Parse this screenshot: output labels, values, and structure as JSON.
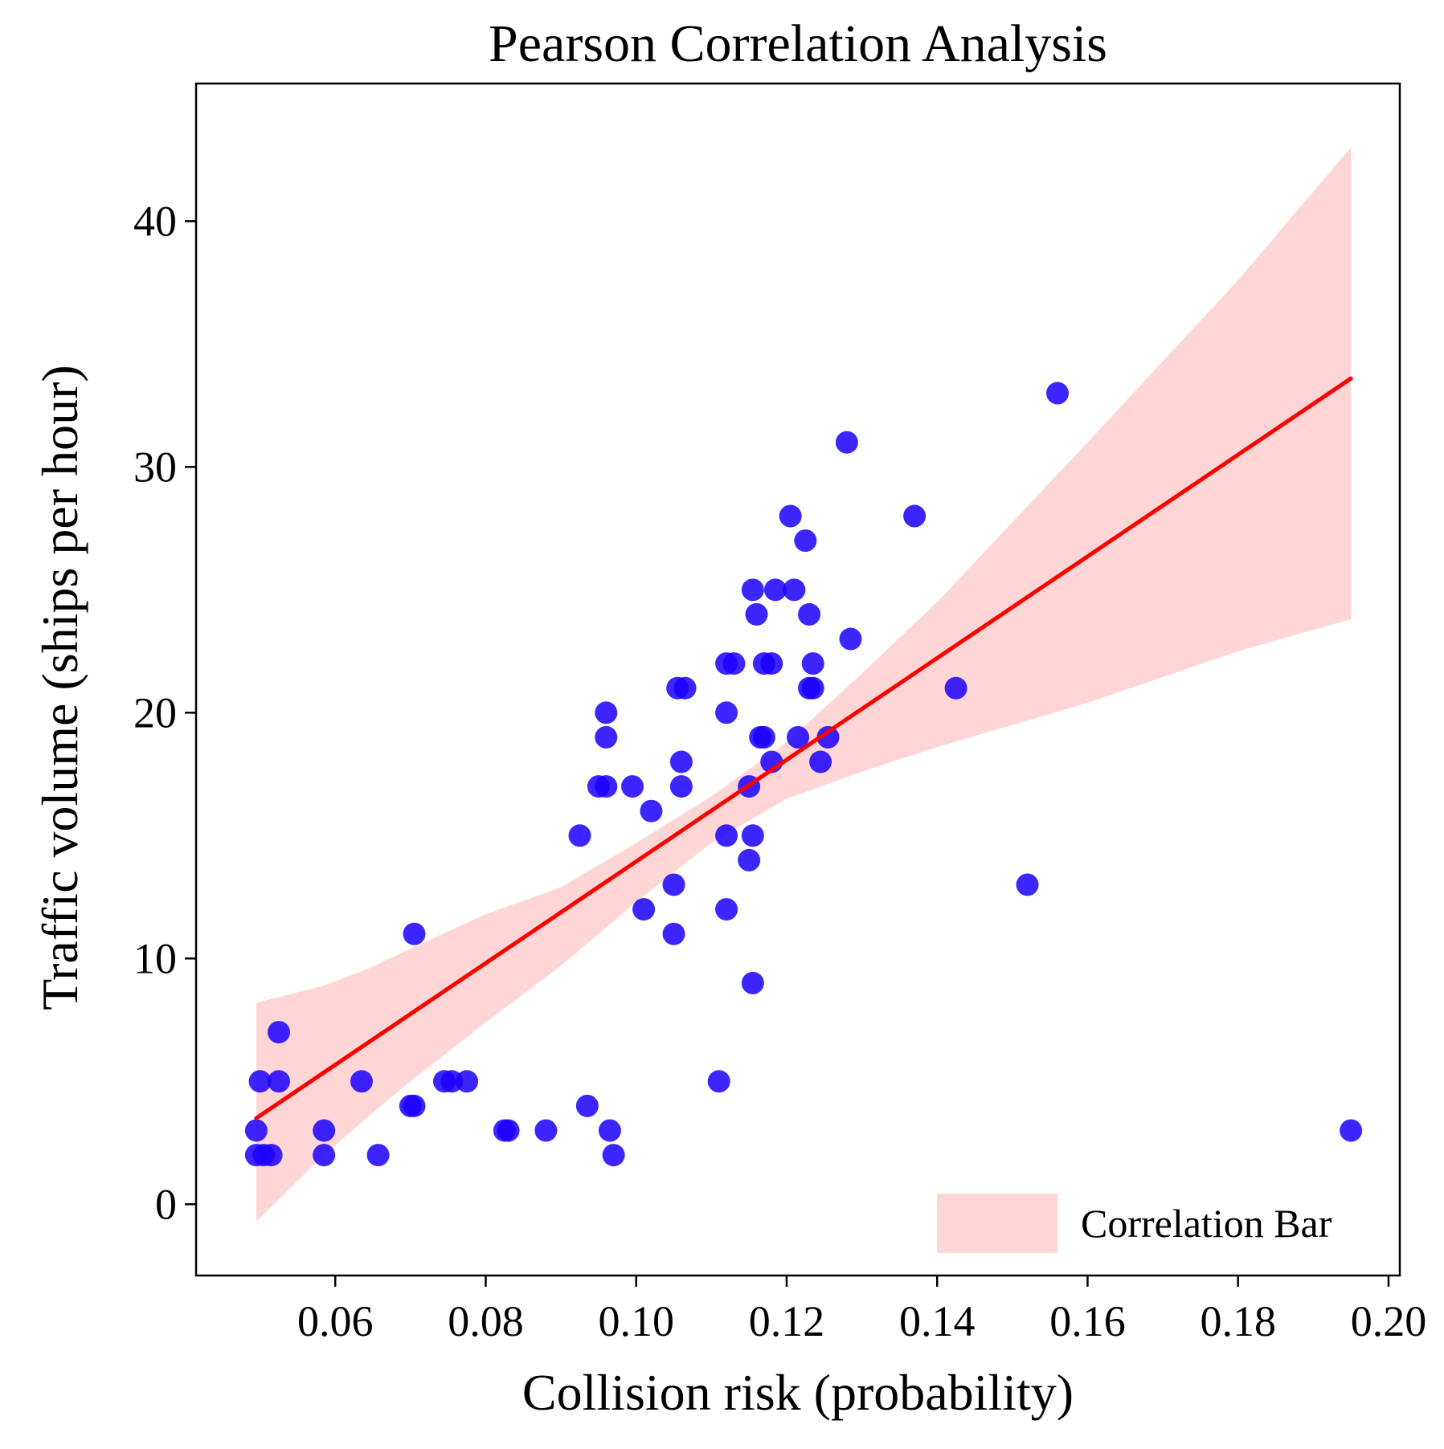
{
  "chart_data": {
    "type": "scatter",
    "title": "Pearson Correlation Analysis",
    "xlabel": "Collision risk (probability)",
    "ylabel": "Traffic volume (ships per hour)",
    "xlim": [
      0.0415,
      0.2015
    ],
    "ylim": [
      -2.9,
      45.6
    ],
    "xticks": [
      0.06,
      0.08,
      0.1,
      0.12,
      0.14,
      0.16,
      0.18,
      0.2
    ],
    "xtick_labels": [
      "0.06",
      "0.08",
      "0.10",
      "0.12",
      "0.14",
      "0.16",
      "0.18",
      "0.20"
    ],
    "yticks": [
      0,
      10,
      20,
      30,
      40
    ],
    "ytick_labels": [
      "0",
      "10",
      "20",
      "30",
      "40"
    ],
    "grid": false,
    "legend_position": "lower-right",
    "legend": [
      {
        "label": "Correlation Bar",
        "color": "#ffd6d6"
      }
    ],
    "point_color": "#1a00ff",
    "line_color": "#ff0000",
    "band_color": "#ffd6d6",
    "regression": {
      "x": [
        0.0495,
        0.195
      ],
      "y": [
        3.5,
        33.6
      ]
    },
    "band_x": [
      0.0495,
      0.0585,
      0.0645,
      0.07,
      0.08,
      0.09,
      0.1,
      0.11,
      0.12,
      0.13,
      0.14,
      0.16,
      0.18,
      0.195
    ],
    "band_upper": [
      8.2,
      8.9,
      9.6,
      10.4,
      11.8,
      12.9,
      14.7,
      16.6,
      18.8,
      21.6,
      24.5,
      31.0,
      37.6,
      43.0
    ],
    "band_lower": [
      -0.7,
      2.0,
      3.6,
      5.0,
      7.4,
      9.7,
      12.3,
      14.7,
      16.5,
      17.6,
      18.6,
      20.4,
      22.5,
      23.8
    ],
    "points": [
      [
        0.0495,
        2
      ],
      [
        0.0505,
        2
      ],
      [
        0.0515,
        2
      ],
      [
        0.0495,
        3
      ],
      [
        0.05,
        5
      ],
      [
        0.0525,
        5
      ],
      [
        0.0525,
        7
      ],
      [
        0.0585,
        3
      ],
      [
        0.0585,
        2
      ],
      [
        0.0635,
        5
      ],
      [
        0.0657,
        2
      ],
      [
        0.07,
        4
      ],
      [
        0.0705,
        4
      ],
      [
        0.0705,
        11
      ],
      [
        0.0745,
        5
      ],
      [
        0.0755,
        5
      ],
      [
        0.0775,
        5
      ],
      [
        0.0825,
        3
      ],
      [
        0.083,
        3
      ],
      [
        0.088,
        3
      ],
      [
        0.0925,
        15
      ],
      [
        0.0935,
        4
      ],
      [
        0.095,
        17
      ],
      [
        0.096,
        17
      ],
      [
        0.096,
        20
      ],
      [
        0.096,
        19
      ],
      [
        0.0965,
        3
      ],
      [
        0.097,
        2
      ],
      [
        0.0995,
        17
      ],
      [
        0.101,
        12
      ],
      [
        0.102,
        16
      ],
      [
        0.105,
        11
      ],
      [
        0.105,
        13
      ],
      [
        0.1055,
        21
      ],
      [
        0.1065,
        21
      ],
      [
        0.106,
        18
      ],
      [
        0.106,
        17
      ],
      [
        0.111,
        5
      ],
      [
        0.112,
        22
      ],
      [
        0.113,
        22
      ],
      [
        0.112,
        20
      ],
      [
        0.112,
        12
      ],
      [
        0.112,
        15
      ],
      [
        0.115,
        17
      ],
      [
        0.115,
        14
      ],
      [
        0.1155,
        15
      ],
      [
        0.1155,
        9
      ],
      [
        0.1155,
        25
      ],
      [
        0.116,
        24
      ],
      [
        0.1165,
        19
      ],
      [
        0.117,
        19
      ],
      [
        0.117,
        22
      ],
      [
        0.118,
        22
      ],
      [
        0.118,
        18
      ],
      [
        0.1185,
        25
      ],
      [
        0.1205,
        28
      ],
      [
        0.121,
        25
      ],
      [
        0.1215,
        19
      ],
      [
        0.1225,
        27
      ],
      [
        0.123,
        24
      ],
      [
        0.1235,
        22
      ],
      [
        0.1235,
        21
      ],
      [
        0.123,
        21
      ],
      [
        0.1245,
        18
      ],
      [
        0.1255,
        19
      ],
      [
        0.128,
        31
      ],
      [
        0.1285,
        23
      ],
      [
        0.137,
        28
      ],
      [
        0.1425,
        21
      ],
      [
        0.152,
        13
      ],
      [
        0.156,
        33
      ],
      [
        0.195,
        3
      ]
    ]
  }
}
